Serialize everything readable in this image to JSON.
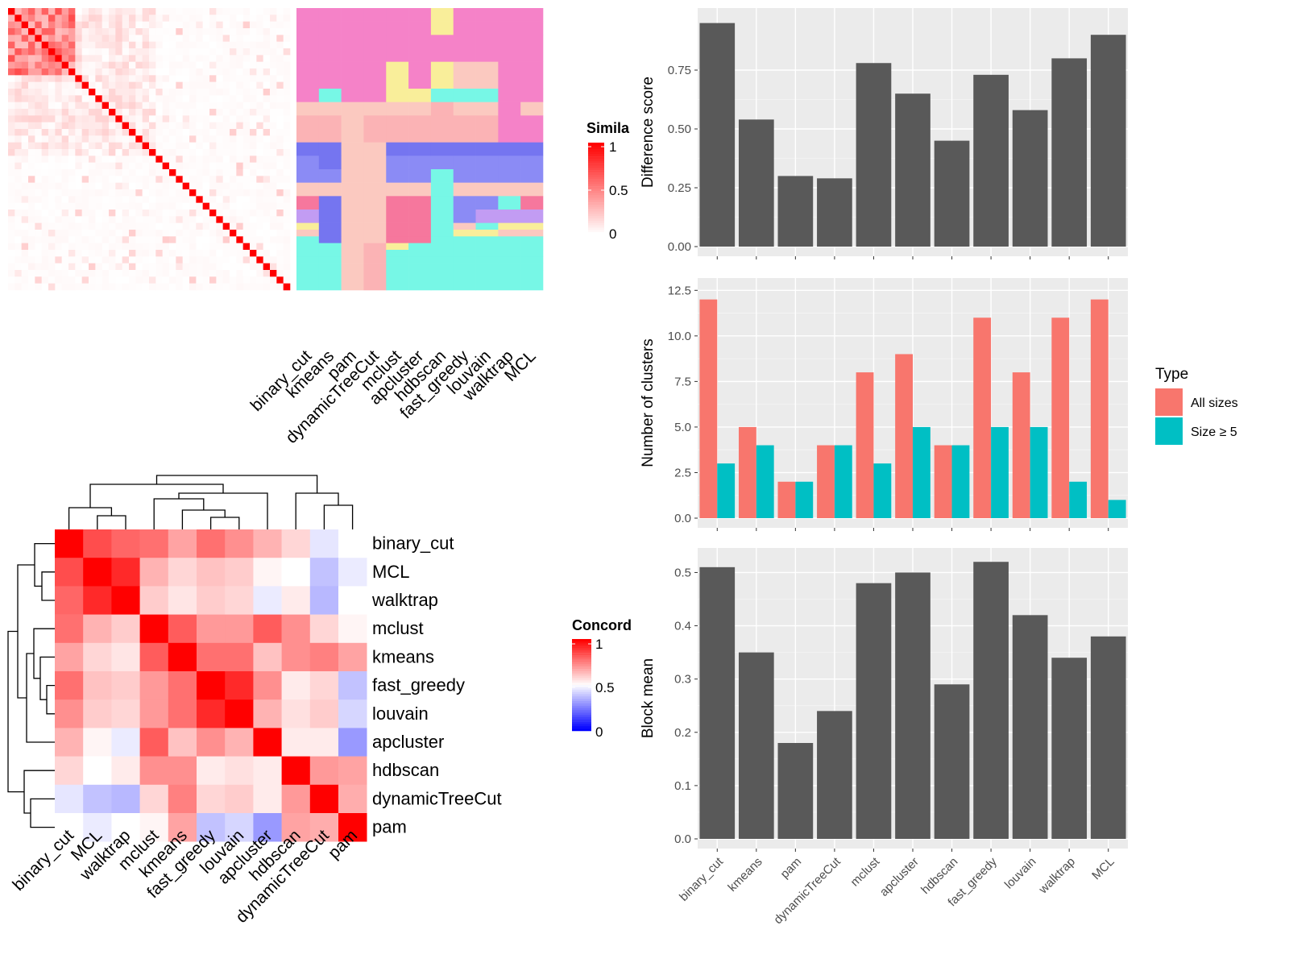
{
  "methods": [
    "binary_cut",
    "kmeans",
    "pam",
    "dynamicTreeCut",
    "mclust",
    "apcluster",
    "hdbscan",
    "fast_greedy",
    "louvain",
    "walktrap",
    "MCL"
  ],
  "similarity_heatmap": {
    "legend_title": "Simila",
    "legend_ticks": [
      "1",
      "0.5",
      "0"
    ],
    "colors": {
      "low": "#ffffff",
      "high": "#ff0000"
    }
  },
  "class_palette": [
    "#f582c8",
    "#fbc9c0",
    "#fbb3b5",
    "#7575f0",
    "#8b8bf5",
    "#77f7e6",
    "#f9ee9a",
    "#f6779d",
    "#c29cf3",
    "#5a6cf5"
  ],
  "concordance_heatmap": {
    "legend_title": "Concord",
    "legend_ticks": [
      "1",
      "0.5",
      "0"
    ],
    "colors": {
      "low": "#0000ff",
      "mid": "#ffffff",
      "high": "#ff0000"
    },
    "order": [
      "binary_cut",
      "MCL",
      "walktrap",
      "mclust",
      "kmeans",
      "fast_greedy",
      "louvain",
      "apcluster",
      "hdbscan",
      "dynamicTreeCut",
      "pam"
    ],
    "matrix": [
      [
        1.0,
        0.85,
        0.8,
        0.78,
        0.68,
        0.78,
        0.72,
        0.65,
        0.58,
        0.45,
        0.5
      ],
      [
        0.85,
        1.0,
        0.92,
        0.65,
        0.58,
        0.62,
        0.6,
        0.52,
        0.5,
        0.38,
        0.46
      ],
      [
        0.8,
        0.92,
        1.0,
        0.6,
        0.55,
        0.6,
        0.58,
        0.46,
        0.54,
        0.36,
        0.5
      ],
      [
        0.78,
        0.65,
        0.6,
        1.0,
        0.82,
        0.7,
        0.7,
        0.82,
        0.72,
        0.58,
        0.52
      ],
      [
        0.68,
        0.58,
        0.55,
        0.82,
        1.0,
        0.78,
        0.78,
        0.62,
        0.72,
        0.75,
        0.68
      ],
      [
        0.78,
        0.62,
        0.6,
        0.7,
        0.78,
        1.0,
        0.92,
        0.72,
        0.54,
        0.58,
        0.38
      ],
      [
        0.72,
        0.6,
        0.58,
        0.7,
        0.78,
        0.92,
        1.0,
        0.65,
        0.56,
        0.6,
        0.42
      ],
      [
        0.65,
        0.52,
        0.46,
        0.82,
        0.62,
        0.72,
        0.65,
        1.0,
        0.54,
        0.54,
        0.3
      ],
      [
        0.58,
        0.5,
        0.54,
        0.72,
        0.72,
        0.54,
        0.56,
        0.54,
        1.0,
        0.7,
        0.68
      ],
      [
        0.45,
        0.38,
        0.36,
        0.58,
        0.75,
        0.58,
        0.6,
        0.54,
        0.7,
        1.0,
        0.66
      ],
      [
        0.5,
        0.46,
        0.5,
        0.52,
        0.68,
        0.38,
        0.42,
        0.3,
        0.68,
        0.66,
        1.0
      ]
    ]
  },
  "chart_data": [
    {
      "type": "bar",
      "categories": [
        "binary_cut",
        "kmeans",
        "pam",
        "dynamicTreeCut",
        "mclust",
        "apcluster",
        "hdbscan",
        "fast_greedy",
        "louvain",
        "walktrap",
        "MCL"
      ],
      "values": [
        0.95,
        0.54,
        0.3,
        0.29,
        0.78,
        0.65,
        0.45,
        0.73,
        0.58,
        0.8,
        0.9
      ],
      "ylabel": "Difference score",
      "ylim": [
        0,
        1.0
      ],
      "yticks": [
        "0.00",
        "0.25",
        "0.50",
        "0.75"
      ]
    },
    {
      "type": "bar",
      "categories": [
        "binary_cut",
        "kmeans",
        "pam",
        "dynamicTreeCut",
        "mclust",
        "apcluster",
        "hdbscan",
        "fast_greedy",
        "louvain",
        "walktrap",
        "MCL"
      ],
      "series": [
        {
          "name": "All sizes",
          "values": [
            12,
            5,
            2,
            4,
            8,
            9,
            4,
            11,
            8,
            11,
            12
          ],
          "color": "#f8766d"
        },
        {
          "name": "Size ≥ 5",
          "values": [
            3,
            4,
            2,
            4,
            3,
            5,
            4,
            5,
            5,
            2,
            1
          ],
          "color": "#00bfc4"
        }
      ],
      "ylabel": "Number of clusters",
      "ylim": [
        0,
        13.0
      ],
      "yticks": [
        "0.0",
        "2.5",
        "5.0",
        "7.5",
        "10.0",
        "12.5"
      ],
      "legend_title": "Type",
      "legend_position": "right"
    },
    {
      "type": "bar",
      "categories": [
        "binary_cut",
        "kmeans",
        "pam",
        "dynamicTreeCut",
        "mclust",
        "apcluster",
        "hdbscan",
        "fast_greedy",
        "louvain",
        "walktrap",
        "MCL"
      ],
      "values": [
        0.51,
        0.35,
        0.18,
        0.24,
        0.48,
        0.5,
        0.29,
        0.52,
        0.42,
        0.34,
        0.38
      ],
      "ylabel": "Block mean",
      "ylim": [
        0,
        0.54
      ],
      "yticks": [
        "0.0",
        "0.1",
        "0.2",
        "0.3",
        "0.4",
        "0.5"
      ]
    }
  ]
}
